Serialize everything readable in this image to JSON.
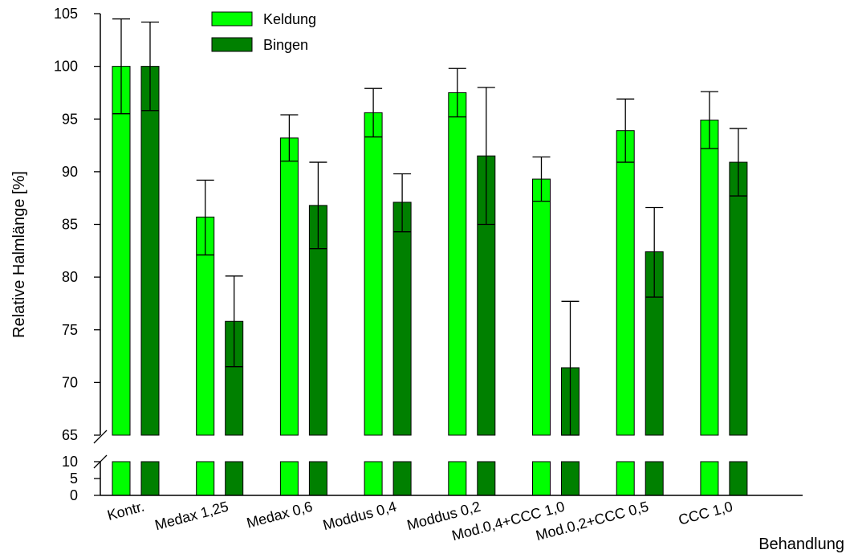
{
  "chart_data": {
    "type": "bar",
    "title": "",
    "ylabel": "Relative Halmlänge [%]",
    "xlabel": "Behandlung",
    "categories": [
      "Kontr.",
      "Medax 1,25",
      "Medax 0,6",
      "Moddus 0,4",
      "Moddus 0,2",
      "Mod.0,4+CCC 1,0",
      "Mod.0,2+CCC 0,5",
      "CCC 1,0"
    ],
    "series": [
      {
        "name": "Keldung",
        "color": "#00ff00",
        "values": [
          100,
          85.7,
          93.2,
          95.6,
          97.5,
          89.3,
          93.9,
          94.9
        ],
        "err_high": [
          104.5,
          89.2,
          95.4,
          97.9,
          99.8,
          91.4,
          96.9,
          97.6
        ],
        "err_low": [
          95.5,
          82.1,
          91.0,
          93.3,
          95.2,
          87.2,
          90.9,
          92.2
        ]
      },
      {
        "name": "Bingen",
        "color": "#008000",
        "values": [
          100,
          75.8,
          86.8,
          87.1,
          91.5,
          71.4,
          82.4,
          90.9
        ],
        "err_high": [
          104.2,
          80.1,
          90.9,
          89.8,
          98.0,
          77.7,
          86.6,
          94.1
        ],
        "err_low": [
          95.8,
          71.5,
          82.7,
          84.3,
          85.0,
          65.0,
          78.1,
          87.7
        ]
      }
    ],
    "y_axis_upper": {
      "range": [
        65,
        105
      ],
      "ticks": [
        "65",
        "70",
        "75",
        "80",
        "85",
        "90",
        "95",
        "100",
        "105"
      ]
    },
    "y_axis_lower": {
      "range": [
        0,
        10
      ],
      "ticks": [
        "0",
        "5",
        "10"
      ]
    },
    "axis_break": "65",
    "legend_position": "top-left",
    "grid": false
  }
}
